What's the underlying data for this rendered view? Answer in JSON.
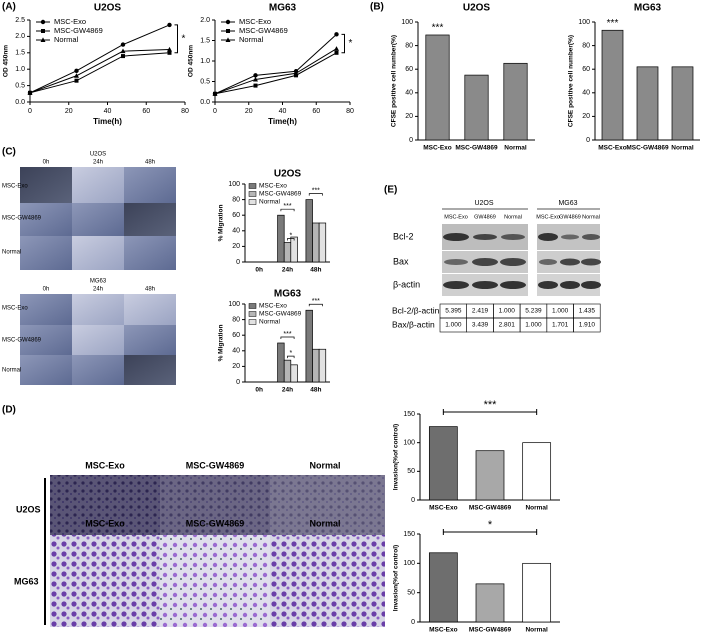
{
  "panel_labels": [
    "(A)",
    "(B)",
    "(C)",
    "(D)",
    "(E)"
  ],
  "chart_data": [
    {
      "type": "line",
      "title": "U2OS",
      "x_label": "Time(h)",
      "y_label": "OD 450nm",
      "x": [
        0,
        24,
        48,
        72
      ],
      "xlim": [
        0,
        80
      ],
      "xticks": [
        0,
        20,
        40,
        60,
        80
      ],
      "ylim": [
        0,
        2.5
      ],
      "yticks": [
        {
          "value": 0,
          "label": "0.0"
        },
        {
          "value": 0.5,
          "label": "0.5"
        },
        {
          "value": 1,
          "label": "1.0"
        },
        {
          "value": 1.5,
          "label": "1.5"
        },
        {
          "value": 2,
          "label": "2.0"
        },
        {
          "value": 2.5,
          "label": "2.5"
        }
      ],
      "series": [
        {
          "name": "MSC-Exo",
          "color": "#000000",
          "values": [
            0.28,
            0.95,
            1.75,
            2.35
          ]
        },
        {
          "name": "MSC-GW4869",
          "color": "#000000",
          "values": [
            0.28,
            0.65,
            1.4,
            1.5
          ]
        },
        {
          "name": "Normal",
          "color": "#000000",
          "values": [
            0.28,
            0.8,
            1.55,
            1.6
          ]
        }
      ],
      "annotations": [
        "*"
      ],
      "legend": "upper left"
    },
    {
      "type": "line",
      "title": "MG63",
      "x_label": "Time(h)",
      "y_label": "OD 450nm",
      "x": [
        0,
        24,
        48,
        72
      ],
      "xlim": [
        0,
        80
      ],
      "xticks": [
        0,
        20,
        40,
        60,
        80
      ],
      "ylim": [
        0,
        2
      ],
      "yticks": [
        {
          "value": 0,
          "label": "0.0"
        },
        {
          "value": 0.5,
          "label": "0.5"
        },
        {
          "value": 1,
          "label": "1.0"
        },
        {
          "value": 1.5,
          "label": "1.5"
        },
        {
          "value": 2,
          "label": "2.0"
        }
      ],
      "series": [
        {
          "name": "MSC-Exo",
          "color": "#000000",
          "values": [
            0.2,
            0.65,
            0.75,
            1.65
          ]
        },
        {
          "name": "MSC-GW4869",
          "color": "#000000",
          "values": [
            0.2,
            0.4,
            0.65,
            1.2
          ]
        },
        {
          "name": "Normal",
          "color": "#000000",
          "values": [
            0.2,
            0.55,
            0.7,
            1.3
          ]
        }
      ],
      "annotations": [
        "*"
      ],
      "legend": "upper left"
    },
    {
      "type": "bar",
      "title": "U2OS",
      "y_label": "CFSE positive cell number(%)",
      "categories": [
        "MSC-Exo",
        "MSC-GW4869",
        "Normal"
      ],
      "values": [
        89,
        55,
        65
      ],
      "colors": [
        "#8a8a8a",
        "#8a8a8a",
        "#8a8a8a"
      ],
      "ylim": [
        0,
        100
      ],
      "yticks": [
        0,
        20,
        40,
        60,
        80,
        100
      ],
      "annotations": [
        "***"
      ]
    },
    {
      "type": "bar",
      "title": "MG63",
      "y_label": "CFSE positive cell number(%)",
      "categories": [
        "MSC-Exo",
        "MSC-GW4869",
        "Normal"
      ],
      "values": [
        93,
        62,
        62
      ],
      "colors": [
        "#8a8a8a",
        "#8a8a8a",
        "#8a8a8a"
      ],
      "ylim": [
        0,
        100
      ],
      "yticks": [
        0,
        20,
        40,
        60,
        80,
        100
      ],
      "annotations": [
        "***"
      ]
    },
    {
      "type": "bar",
      "title": "U2OS",
      "y_label": "% Migration",
      "categories": [
        "0h",
        "24h",
        "48h"
      ],
      "series": [
        {
          "name": "MSC-Exo",
          "color": "#7a7a7a",
          "values": [
            0,
            60,
            80
          ]
        },
        {
          "name": "MSC-GW4869",
          "color": "#b5b5b5",
          "values": [
            0,
            25,
            50
          ]
        },
        {
          "name": "Normal",
          "color": "#e2e2e2",
          "values": [
            0,
            32,
            50
          ]
        }
      ],
      "ylim": [
        0,
        100
      ],
      "yticks": [
        0,
        20,
        40,
        60,
        80,
        100
      ],
      "annotations": [
        "***",
        "*",
        "***"
      ],
      "legend": "upper left"
    },
    {
      "type": "bar",
      "title": "MG63",
      "y_label": "% Migration",
      "categories": [
        "0h",
        "24h",
        "48h"
      ],
      "series": [
        {
          "name": "MSC-Exo",
          "color": "#7a7a7a",
          "values": [
            0,
            50,
            92
          ]
        },
        {
          "name": "MSC-GW4869",
          "color": "#b5b5b5",
          "values": [
            0,
            28,
            42
          ]
        },
        {
          "name": "Normal",
          "color": "#e2e2e2",
          "values": [
            0,
            22,
            42
          ]
        }
      ],
      "ylim": [
        0,
        100
      ],
      "yticks": [
        0,
        20,
        40,
        60,
        80,
        100
      ],
      "annotations": [
        "***",
        "*",
        "***"
      ],
      "legend": "upper left"
    },
    {
      "type": "bar",
      "y_label": "Invasion(%of control)",
      "categories": [
        "MSC-Exo",
        "MSC-GW4869",
        "Normal"
      ],
      "values": [
        128,
        86,
        100
      ],
      "colors": [
        "#6e6e6e",
        "#a8a8a8",
        "#ffffff"
      ],
      "ylim": [
        0,
        150
      ],
      "yticks": [
        0,
        50,
        100,
        150
      ],
      "annotations": [
        "***"
      ]
    },
    {
      "type": "bar",
      "y_label": "Invasion(%of control)",
      "categories": [
        "MSC-Exo",
        "MSC-GW4869",
        "Normal"
      ],
      "values": [
        118,
        65,
        100
      ],
      "colors": [
        "#6e6e6e",
        "#a8a8a8",
        "#ffffff"
      ],
      "ylim": [
        0,
        150
      ],
      "yticks": [
        0,
        50,
        100,
        150
      ],
      "annotations": [
        "*"
      ]
    }
  ],
  "migration_images": [
    {
      "title": "U2OS",
      "columns": [
        "0h",
        "24h",
        "48h"
      ],
      "rows": [
        "MSC-Exo",
        "MSC-GW4869",
        "Normal"
      ]
    },
    {
      "title": "MG63",
      "columns": [
        "0h",
        "24h",
        "48h"
      ],
      "rows": [
        "MSC-Exo",
        "MSC-GW4869",
        "Normal"
      ]
    }
  ],
  "invasion_images": [
    {
      "label": "U2OS",
      "columns": [
        "MSC-Exo",
        "MSC-GW4869",
        "Normal"
      ]
    },
    {
      "label": "MG63",
      "columns": [
        "MSC-Exo",
        "MSC-GW4869",
        "Normal"
      ]
    }
  ],
  "western_blot": {
    "cell_lines": [
      "U2OS",
      "MG63"
    ],
    "lanes": [
      [
        "MSC-Exo",
        "GW4869",
        "Normal"
      ],
      [
        "MSC-Exo",
        "GW4869",
        "Normal"
      ]
    ],
    "bands": [
      "Bcl-2",
      "Bax",
      "β-actin"
    ],
    "ratios": [
      {
        "label": "Bcl-2/β-actin",
        "values": [
          "5.395",
          "2.419",
          "1.000",
          "5.239",
          "1.000",
          "1.435"
        ]
      },
      {
        "label": "Bax/β-actin",
        "values": [
          "1.000",
          "3.439",
          "2.801",
          "1.000",
          "1.701",
          "1.910"
        ]
      }
    ]
  }
}
